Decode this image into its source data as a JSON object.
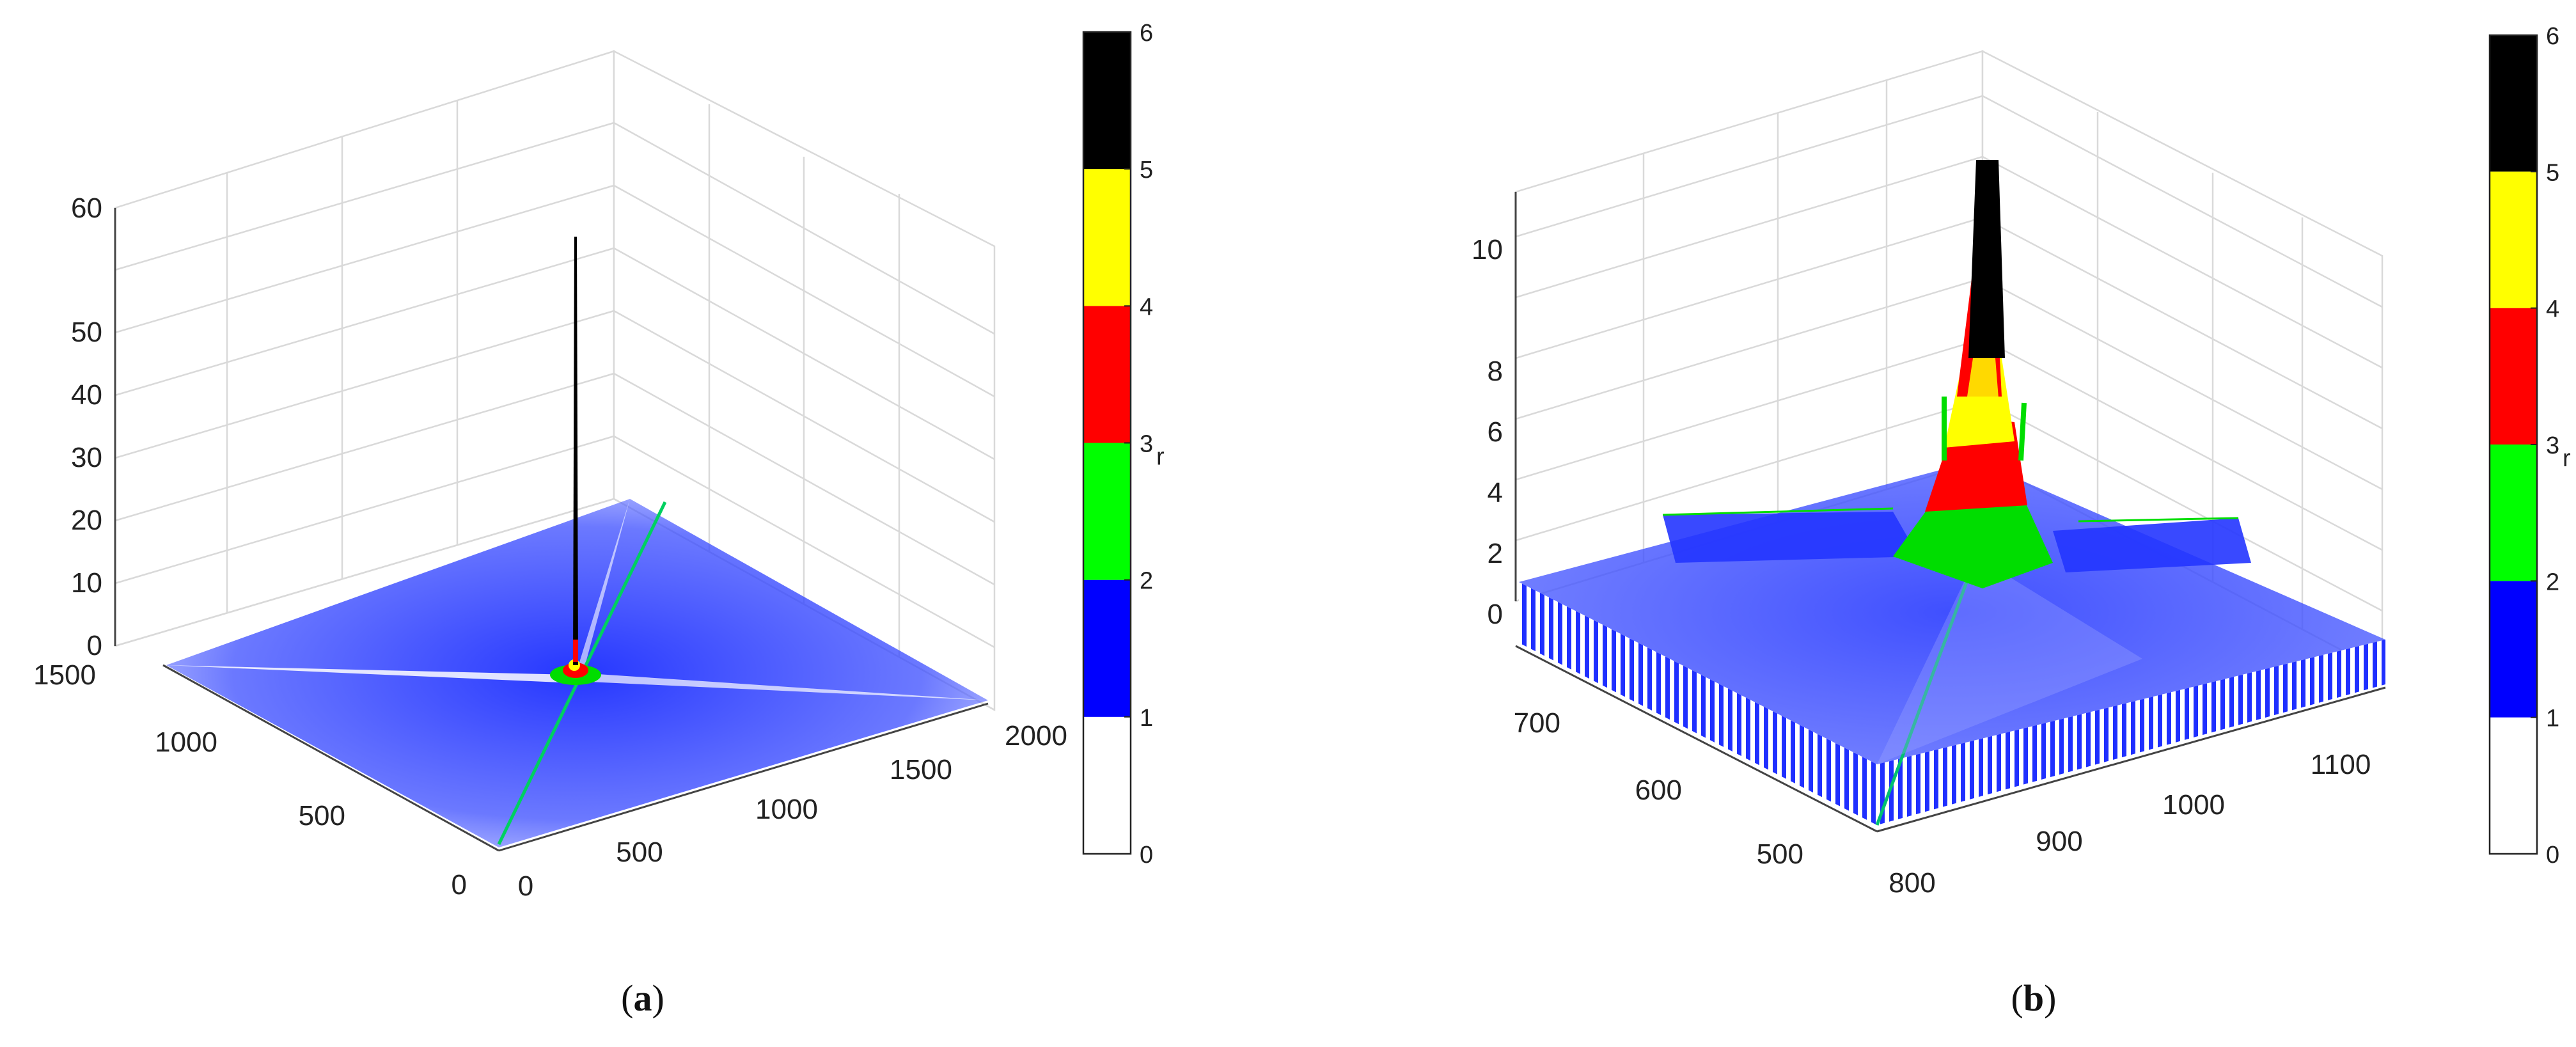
{
  "chart_data": [
    {
      "panel": "(a)",
      "caption_letter": "a",
      "type": "surface",
      "x_ticks": [
        "0",
        "500",
        "1000",
        "1500",
        "2000"
      ],
      "y_ticks": [
        "0",
        "500",
        "1000",
        "1500"
      ],
      "z_ticks": [
        "0",
        "10",
        "20",
        "30",
        "40",
        "50",
        "60"
      ],
      "xlim": [
        0,
        2000
      ],
      "ylim": [
        0,
        1500
      ],
      "zlim": [
        0,
        60
      ],
      "grid": true,
      "peak": {
        "z": 57
      },
      "colorbar": {
        "ticks": [
          "0",
          "1",
          "2",
          "3",
          "4",
          "5",
          "6"
        ],
        "label": "r",
        "bands": [
          {
            "from": 0,
            "to": 1,
            "color": "#ffffff"
          },
          {
            "from": 1,
            "to": 2,
            "color": "#0000ff"
          },
          {
            "from": 2,
            "to": 3,
            "color": "#00ff00"
          },
          {
            "from": 3,
            "to": 4,
            "color": "#ff0000"
          },
          {
            "from": 4,
            "to": 5,
            "color": "#ffff00"
          },
          {
            "from": 5,
            "to": 6,
            "color": "#000000"
          }
        ]
      }
    },
    {
      "panel": "(b)",
      "caption_letter": "b",
      "type": "surface",
      "x_ticks": [
        "800",
        "900",
        "1000",
        "1100"
      ],
      "y_ticks": [
        "500",
        "600",
        "700"
      ],
      "z_ticks": [
        "0",
        "2",
        "4",
        "6",
        "8",
        "10"
      ],
      "xlim": [
        760,
        1160
      ],
      "ylim": [
        460,
        760
      ],
      "zlim": [
        0,
        12
      ],
      "grid": true,
      "peak": {
        "z": 11.5
      },
      "colorbar": {
        "ticks": [
          "0",
          "1",
          "2",
          "3",
          "4",
          "5",
          "6"
        ],
        "label": "r",
        "bands": [
          {
            "from": 0,
            "to": 1,
            "color": "#ffffff"
          },
          {
            "from": 1,
            "to": 2,
            "color": "#0000ff"
          },
          {
            "from": 2,
            "to": 3,
            "color": "#00ff00"
          },
          {
            "from": 3,
            "to": 4,
            "color": "#ff0000"
          },
          {
            "from": 4,
            "to": 5,
            "color": "#ffff00"
          },
          {
            "from": 5,
            "to": 6,
            "color": "#000000"
          }
        ]
      }
    }
  ]
}
